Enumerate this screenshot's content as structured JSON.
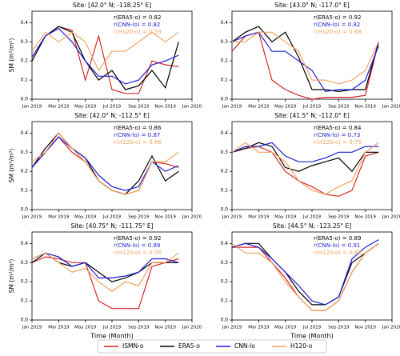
{
  "series_names": [
    "ISMN-o",
    "ERA5-o",
    "CNN-lo",
    "H120-o"
  ],
  "series_colors": [
    "#d62728",
    "#000000",
    "#1f1fd6",
    "#f5a25d"
  ],
  "chart_data": [
    {
      "type": "line",
      "title": "Site: [42.0° N; -118.25° E]",
      "ylabel": "SM (m³/m³)",
      "annotations": [
        "r(ERA5-o) = 0.82",
        "r(CNN-lo) = 0.82",
        "r(H120-o) = 0.59"
      ],
      "x": [
        "Jan 2019",
        null,
        "Mar 2019",
        null,
        "May 2019",
        null,
        "Jul 2019",
        null,
        "Sep 2019",
        null,
        "Nov 2019",
        null,
        "Jan 2020"
      ],
      "ylim": [
        0,
        0.46
      ],
      "yticks": [
        {
          "value": 0,
          "label": "0.0"
        },
        {
          "value": 0.1,
          "label": "0.1"
        },
        {
          "value": 0.2,
          "label": "0.2"
        },
        {
          "value": 0.3,
          "label": "0.3"
        },
        {
          "value": 0.4,
          "label": "0.4"
        }
      ],
      "series": [
        {
          "values": [
            0.22,
            0.33,
            0.38,
            0.36,
            0.1,
            0.33,
            0.05,
            0.03,
            0.03,
            0.2,
            0.18,
            0.17,
            null
          ]
        },
        {
          "values": [
            0.2,
            0.33,
            0.38,
            0.35,
            0.2,
            0.1,
            0.15,
            0.05,
            0.07,
            0.15,
            0.06,
            0.3,
            null
          ]
        },
        {
          "values": [
            0.22,
            0.33,
            0.37,
            0.3,
            0.2,
            0.12,
            0.12,
            0.08,
            0.1,
            0.18,
            0.2,
            0.23,
            null
          ]
        },
        {
          "values": [
            0.25,
            0.35,
            0.3,
            0.35,
            0.3,
            0.15,
            0.25,
            0.25,
            0.3,
            0.35,
            0.3,
            0.35,
            null
          ]
        }
      ]
    },
    {
      "type": "line",
      "title": "Site: [43.0° N; -117.0° E]",
      "annotations": [
        "r(ERA5-o) = 0.92",
        "r(CNN-lo) = 0.82",
        "r(H120-o) = 0.68"
      ],
      "x": [
        "Jan 2019",
        null,
        "Mar 2019",
        null,
        "May 2019",
        null,
        "Jul 2019",
        null,
        "Sep 2019",
        null,
        "Nov 2019",
        null,
        "Jan 2020"
      ],
      "ylim": [
        0,
        0.46
      ],
      "yticks": [
        {
          "value": 0,
          "label": "0.0"
        },
        {
          "value": 0.1,
          "label": "0.1"
        },
        {
          "value": 0.2,
          "label": "0.2"
        },
        {
          "value": 0.3,
          "label": "0.3"
        },
        {
          "value": 0.4,
          "label": "0.4"
        }
      ],
      "series": [
        {
          "values": [
            0.25,
            0.33,
            0.35,
            0.1,
            0.05,
            0.02,
            0.0,
            0.01,
            0.01,
            0.01,
            0.02,
            0.3,
            null
          ]
        },
        {
          "values": [
            0.3,
            0.35,
            0.38,
            0.3,
            0.35,
            0.22,
            0.05,
            0.05,
            0.04,
            0.05,
            0.05,
            0.3,
            null
          ]
        },
        {
          "values": [
            0.3,
            0.33,
            0.35,
            0.25,
            0.25,
            0.2,
            0.15,
            0.04,
            0.05,
            0.05,
            0.1,
            0.28,
            null
          ]
        },
        {
          "values": [
            0.3,
            0.3,
            0.35,
            0.35,
            0.3,
            0.25,
            0.1,
            0.1,
            0.08,
            0.1,
            0.15,
            0.3,
            null
          ]
        }
      ]
    },
    {
      "type": "line",
      "title": "Site: [42.0° N; -112.5° E]",
      "ylabel": "SM (m³/m³)",
      "annotations": [
        "r(ERA5-o) = 0.86",
        "r(CNN-lo) = 0.87",
        "r(H120-o) = 0.86"
      ],
      "x": [
        "Jan 2019",
        null,
        "Mar 2019",
        null,
        "May 2019",
        null,
        "Jul 2019",
        null,
        "Sep 2019",
        null,
        "Nov 2019",
        null,
        "Jan 2020"
      ],
      "ylim": [
        0,
        0.46
      ],
      "yticks": [
        {
          "value": 0,
          "label": "0.0"
        },
        {
          "value": 0.1,
          "label": "0.1"
        },
        {
          "value": 0.2,
          "label": "0.2"
        },
        {
          "value": 0.3,
          "label": "0.3"
        },
        {
          "value": 0.4,
          "label": "0.4"
        }
      ],
      "series": [
        {
          "values": [
            0.22,
            0.3,
            0.38,
            0.3,
            0.25,
            0.15,
            0.1,
            0.08,
            0.1,
            0.25,
            0.24,
            0.22,
            null
          ]
        },
        {
          "values": [
            0.22,
            0.32,
            0.4,
            0.32,
            0.27,
            0.15,
            0.1,
            0.08,
            0.15,
            0.28,
            0.15,
            0.2,
            null
          ]
        },
        {
          "values": [
            0.22,
            0.3,
            0.38,
            0.32,
            0.27,
            0.18,
            0.12,
            0.1,
            0.12,
            0.25,
            0.2,
            0.23,
            null
          ]
        },
        {
          "values": [
            0.25,
            0.3,
            0.4,
            0.32,
            0.25,
            0.15,
            0.1,
            0.08,
            0.1,
            0.25,
            0.25,
            0.3,
            null
          ]
        }
      ]
    },
    {
      "type": "line",
      "title": "Site: [41.5° N; -112.0° E]",
      "annotations": [
        "r(ERA5-o) = 0.84",
        "r(CNN-lo) = 0.73",
        "r(H120-o) = 0.75"
      ],
      "x": [
        "Jan 2019",
        null,
        "Mar 2019",
        null,
        "May 2019",
        null,
        "Jul 2019",
        null,
        "Sep 2019",
        null,
        "Nov 2019",
        null,
        "Jan 2020"
      ],
      "ylim": [
        0,
        0.46
      ],
      "yticks": [
        {
          "value": 0,
          "label": "0.0"
        },
        {
          "value": 0.1,
          "label": "0.1"
        },
        {
          "value": 0.2,
          "label": "0.2"
        },
        {
          "value": 0.3,
          "label": "0.3"
        },
        {
          "value": 0.4,
          "label": "0.4"
        }
      ],
      "series": [
        {
          "values": [
            0.3,
            0.32,
            0.33,
            0.3,
            0.2,
            0.15,
            0.12,
            0.08,
            0.07,
            0.1,
            0.28,
            0.3,
            null
          ]
        },
        {
          "values": [
            0.3,
            0.32,
            0.35,
            0.33,
            0.22,
            0.2,
            0.23,
            0.25,
            0.27,
            0.2,
            0.3,
            0.3,
            null
          ]
        },
        {
          "values": [
            0.3,
            0.33,
            0.33,
            0.35,
            0.28,
            0.25,
            0.25,
            0.27,
            0.3,
            0.3,
            0.33,
            0.33,
            null
          ]
        },
        {
          "values": [
            0.3,
            0.35,
            0.3,
            0.3,
            0.25,
            0.15,
            0.1,
            0.08,
            0.12,
            0.15,
            0.3,
            0.35,
            null
          ]
        }
      ]
    },
    {
      "type": "line",
      "title": "Site: [40.75° N; -111.75° E]",
      "ylabel": "SM (m³/m³)",
      "xlabel": "Time (Month)",
      "annotations": [
        "r(ERA5-o) = 0.92",
        "r(CNN-lo) = 0.89",
        "r(H120-o) = 0.76"
      ],
      "x": [
        "Jan 2019",
        null,
        "Mar 2019",
        null,
        "May 2019",
        null,
        "Jul 2019",
        null,
        "Sep 2019",
        null,
        "Nov 2019",
        null,
        "Jan 2020"
      ],
      "ylim": [
        0,
        0.46
      ],
      "yticks": [
        {
          "value": 0,
          "label": "0.0"
        },
        {
          "value": 0.1,
          "label": "0.1"
        },
        {
          "value": 0.2,
          "label": "0.2"
        },
        {
          "value": 0.3,
          "label": "0.3"
        },
        {
          "value": 0.4,
          "label": "0.4"
        }
      ],
      "series": [
        {
          "values": [
            0.3,
            0.33,
            0.32,
            0.3,
            0.3,
            0.1,
            0.06,
            0.06,
            0.06,
            0.28,
            0.3,
            0.32,
            null
          ]
        },
        {
          "values": [
            0.3,
            0.35,
            0.3,
            0.28,
            0.3,
            0.25,
            0.2,
            0.22,
            0.25,
            0.3,
            0.3,
            0.3,
            null
          ]
        },
        {
          "values": [
            0.32,
            0.35,
            0.33,
            0.28,
            0.3,
            0.22,
            0.22,
            0.23,
            0.25,
            0.32,
            0.32,
            0.3,
            null
          ]
        },
        {
          "values": [
            0.32,
            0.35,
            0.3,
            0.25,
            0.27,
            0.2,
            0.15,
            0.2,
            0.18,
            0.3,
            0.3,
            0.35,
            null
          ]
        }
      ]
    },
    {
      "type": "line",
      "title": "Site: [44.5° N; -123.25° E]",
      "xlabel": "Time (Month)",
      "annotations": [
        "r(ERA5-o) = 0.89",
        "r(CNN-lo) = 0.91",
        "r(H120-o) = 0.88"
      ],
      "x": [
        "Jan 2019",
        null,
        "Mar 2019",
        null,
        "May 2019",
        null,
        "Jul 2019",
        null,
        "Sep 2019",
        null,
        "Nov 2019",
        null,
        "Jan 2020"
      ],
      "ylim": [
        0,
        0.46
      ],
      "yticks": [
        {
          "value": 0,
          "label": "0.0"
        },
        {
          "value": 0.1,
          "label": "0.1"
        },
        {
          "value": 0.2,
          "label": "0.2"
        },
        {
          "value": 0.3,
          "label": "0.3"
        },
        {
          "value": 0.4,
          "label": "0.4"
        }
      ],
      "series": [
        {
          "values": [
            0.38,
            0.38,
            0.38,
            0.3,
            0.22,
            0.12,
            0.05,
            0.05,
            0.1,
            0.25,
            0.35,
            0.4,
            null
          ]
        },
        {
          "values": [
            0.38,
            0.4,
            0.4,
            0.32,
            0.25,
            0.15,
            0.08,
            0.08,
            0.12,
            0.3,
            0.35,
            0.4,
            null
          ]
        },
        {
          "values": [
            0.38,
            0.4,
            0.38,
            0.32,
            0.25,
            0.18,
            0.1,
            0.08,
            0.12,
            0.32,
            0.38,
            0.42,
            null
          ]
        },
        {
          "values": [
            0.4,
            0.35,
            0.35,
            0.3,
            0.2,
            0.12,
            0.05,
            0.05,
            0.1,
            0.25,
            0.35,
            0.4,
            null
          ]
        }
      ]
    }
  ]
}
